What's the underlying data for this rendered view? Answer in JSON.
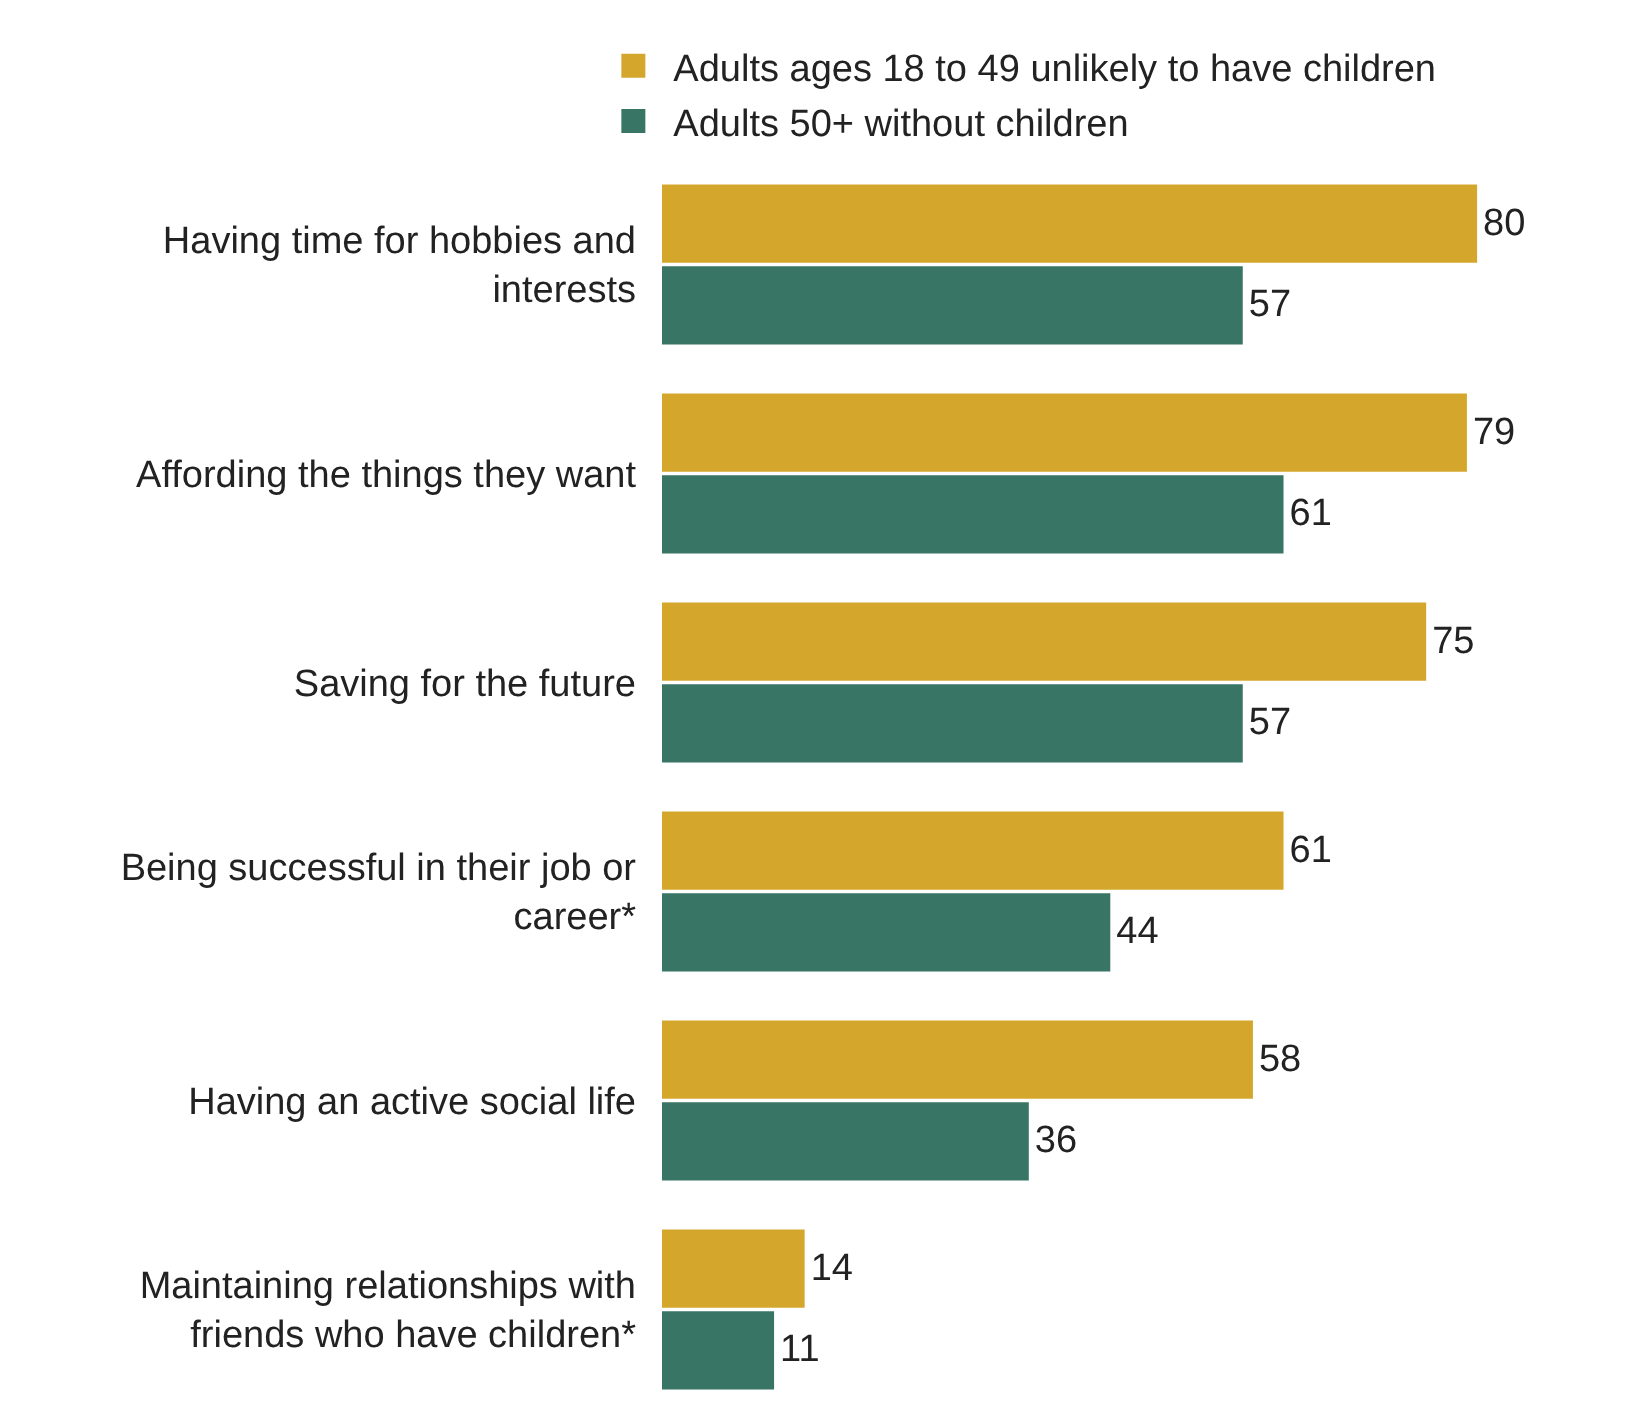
{
  "chart_data": {
    "type": "bar",
    "orientation": "horizontal",
    "categories": [
      "Having time for hobbies and interests",
      "Affording the things they want",
      "Saving for the future",
      "Being successful in their job or career*",
      "Having an active social life",
      "Maintaining relationships with friends who have children*"
    ],
    "series": [
      {
        "name": "Adults ages 18 to 49 unlikely to have children",
        "color": "#d4a72c",
        "values": [
          80,
          79,
          75,
          61,
          58,
          14
        ]
      },
      {
        "name": "Adults 50+ without children",
        "color": "#387564",
        "values": [
          57,
          61,
          57,
          44,
          36,
          11
        ]
      }
    ],
    "data_labels": true,
    "tick_labels": "y",
    "legend": "top"
  }
}
